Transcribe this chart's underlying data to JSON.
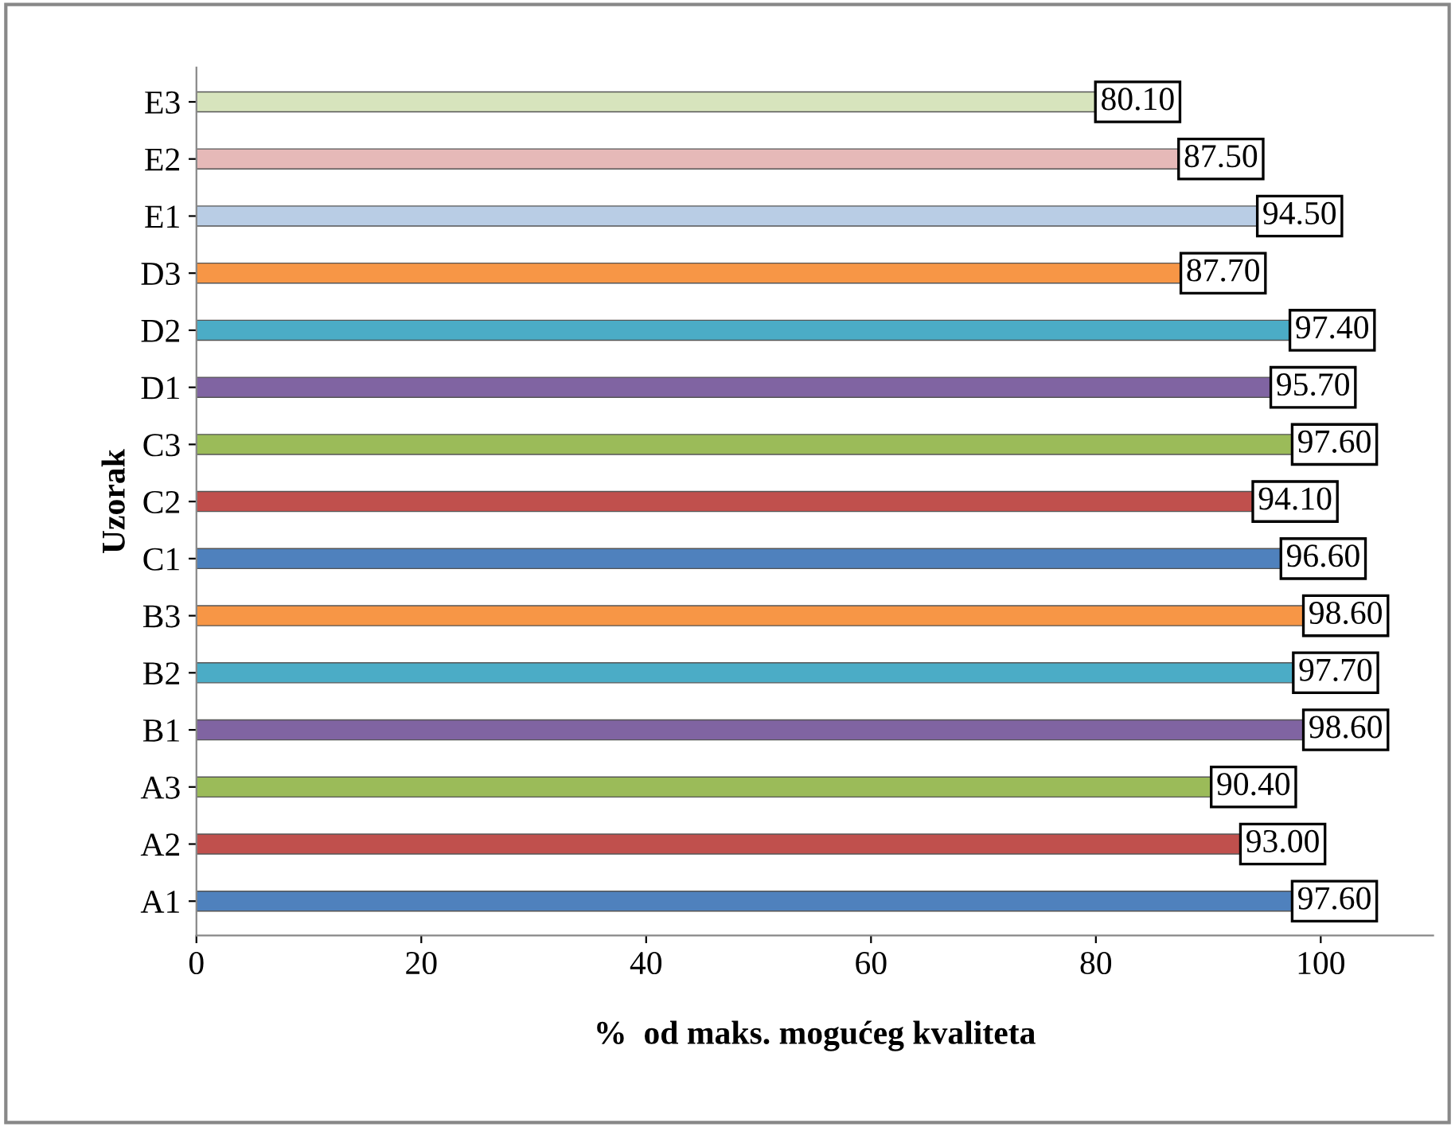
{
  "chart_data": {
    "type": "bar",
    "orientation": "horizontal",
    "xlabel": "%  od maks. mogućeg kvaliteta",
    "ylabel": "Uzorak",
    "categories": [
      "E3",
      "E2",
      "E1",
      "D3",
      "D2",
      "D1",
      "C3",
      "C2",
      "C1",
      "B3",
      "B2",
      "B1",
      "A3",
      "A2",
      "A1"
    ],
    "values": [
      80.1,
      87.5,
      94.5,
      87.7,
      97.4,
      95.7,
      97.6,
      94.1,
      96.6,
      98.6,
      97.7,
      98.6,
      90.4,
      93.0,
      97.6
    ],
    "value_labels": [
      "80.10",
      "87.50",
      "94.50",
      "87.70",
      "97.40",
      "95.70",
      "97.60",
      "94.10",
      "96.60",
      "98.60",
      "97.70",
      "98.60",
      "90.40",
      "93.00",
      "97.60"
    ],
    "colors": [
      "#d7e4bd",
      "#e6b9b8",
      "#b9cde5",
      "#f79646",
      "#4bacc6",
      "#8064a2",
      "#9bbb59",
      "#c0504d",
      "#4f81bd",
      "#f79646",
      "#4bacc6",
      "#8064a2",
      "#9bbb59",
      "#c0504d",
      "#4f81bd"
    ],
    "xlim": [
      0,
      110
    ],
    "xticks": [
      0,
      20,
      40,
      60,
      80,
      100
    ],
    "grid": false,
    "legend": false
  }
}
